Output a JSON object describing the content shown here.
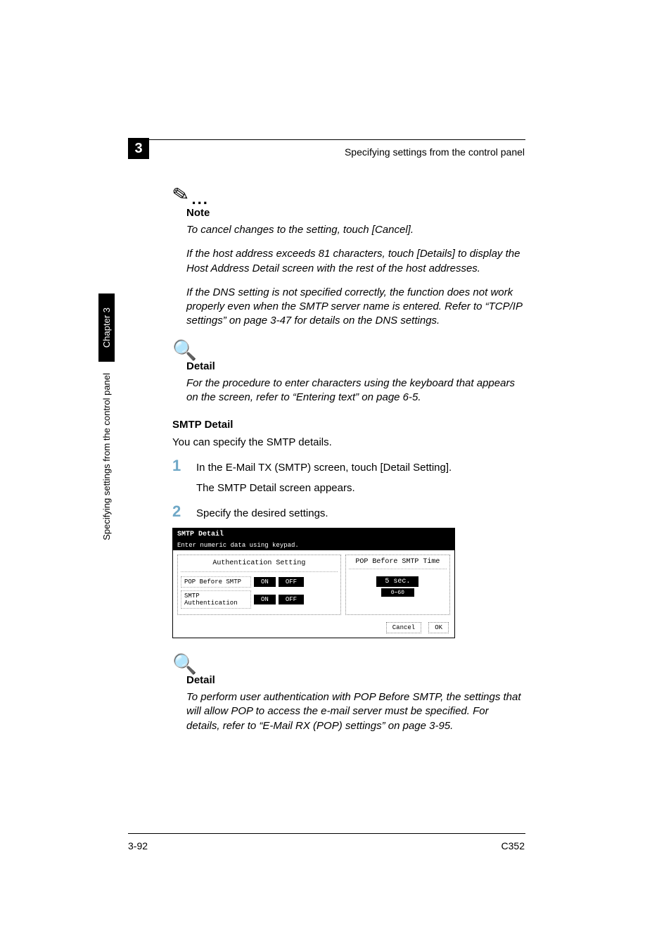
{
  "header": {
    "running_title": "Specifying settings from the control panel",
    "chapter_number": "3"
  },
  "sidebar": {
    "chapter_label": "Chapter 3",
    "section_label": "Specifying settings from the control panel"
  },
  "note": {
    "label": "Note",
    "para1": "To cancel changes to the setting, touch [Cancel].",
    "para2": "If the host address exceeds 81 characters, touch [Details] to display the Host Address Detail screen with the rest of the host addresses.",
    "para3": "If the DNS setting is not specified correctly, the function does not work properly even when the SMTP server name is entered. Refer to “TCP/IP settings” on page 3-47 for details on the DNS settings."
  },
  "detail1": {
    "label": "Detail",
    "para": "For the procedure to enter characters using the keyboard that appears on the screen, refer to “Entering text” on page 6-5."
  },
  "smtp": {
    "heading": "SMTP Detail",
    "intro": "You can specify the SMTP details.",
    "step1_num": "1",
    "step1_text": "In the E-Mail TX (SMTP) screen, touch [Detail Setting].",
    "step1_sub": "The SMTP Detail screen appears.",
    "step2_num": "2",
    "step2_text": "Specify the desired settings."
  },
  "screenshot": {
    "title": "SMTP Detail",
    "subtitle": "Enter numeric data using keypad.",
    "auth_heading": "Authentication Setting",
    "row1_label": "POP Before SMTP",
    "row2_label": "SMTP Authentication",
    "on": "ON",
    "off": "OFF",
    "right_heading": "POP Before SMTP Time",
    "value": "5 sec.",
    "range": "0∼60",
    "cancel": "Cancel",
    "ok": "OK"
  },
  "detail2": {
    "label": "Detail",
    "para": "To perform user authentication with POP Before SMTP, the settings that will allow POP to access the e-mail server must be specified. For details, refer to “E-Mail RX (POP) settings” on page 3-95."
  },
  "footer": {
    "page": "3-92",
    "model": "C352"
  }
}
